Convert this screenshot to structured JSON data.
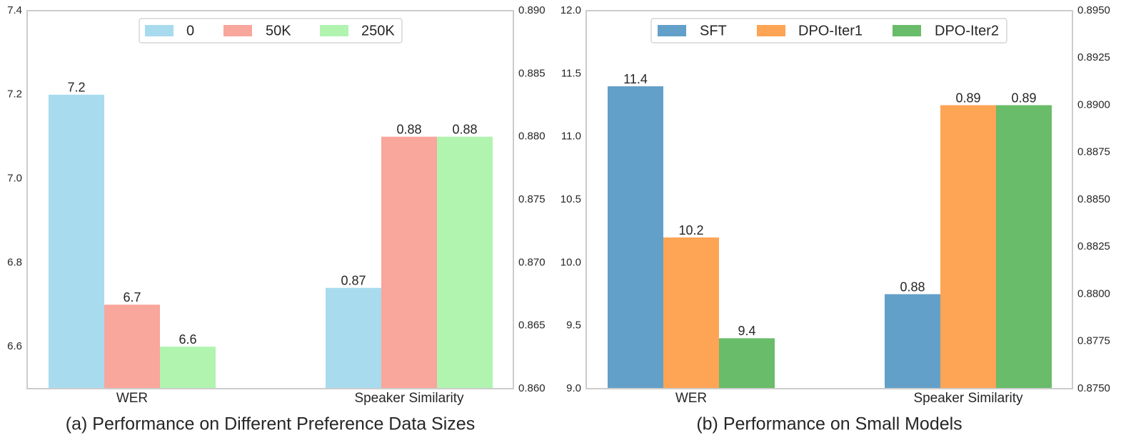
{
  "chart_data": [
    {
      "type": "bar",
      "title": "(a) Performance on Different Preference Data Sizes",
      "categories": [
        "WER",
        "Speaker Similarity"
      ],
      "series": [
        {
          "name": "0",
          "color": "#a8dbee",
          "values": [
            7.2,
            0.868
          ],
          "labels": [
            "7.2",
            "0.87"
          ]
        },
        {
          "name": "50K",
          "color": "#f9a69c",
          "values": [
            6.7,
            0.88
          ],
          "labels": [
            "6.7",
            "0.88"
          ]
        },
        {
          "name": "250K",
          "color": "#b0f4b0",
          "values": [
            6.6,
            0.88
          ],
          "labels": [
            "6.6",
            "0.88"
          ]
        }
      ],
      "left_axis": {
        "ylim": [
          6.5,
          7.4
        ],
        "ticks": [
          "6.6",
          "6.8",
          "7.0",
          "7.2",
          "7.4"
        ]
      },
      "right_axis": {
        "ylim": [
          0.86,
          0.89
        ],
        "ticks": [
          "0.860",
          "0.865",
          "0.870",
          "0.875",
          "0.880",
          "0.885",
          "0.890"
        ]
      },
      "legend": "top-center"
    },
    {
      "type": "bar",
      "title": "(b) Performance on Small Models",
      "categories": [
        "WER",
        "Speaker Similarity"
      ],
      "series": [
        {
          "name": "SFT",
          "color": "#63a0c9",
          "values": [
            11.4,
            0.88
          ],
          "labels": [
            "11.4",
            "0.88"
          ]
        },
        {
          "name": "DPO-Iter1",
          "color": "#fea455",
          "values": [
            10.2,
            0.89
          ],
          "labels": [
            "10.2",
            "0.89"
          ]
        },
        {
          "name": "DPO-Iter2",
          "color": "#69bc69",
          "values": [
            9.4,
            0.89
          ],
          "labels": [
            "9.4",
            "0.89"
          ]
        }
      ],
      "left_axis": {
        "ylim": [
          9.0,
          12.0
        ],
        "ticks": [
          "9.0",
          "9.5",
          "10.0",
          "10.5",
          "11.0",
          "11.5",
          "12.0"
        ]
      },
      "right_axis": {
        "ylim": [
          0.875,
          0.895
        ],
        "ticks": [
          "0.8750",
          "0.8775",
          "0.8800",
          "0.8825",
          "0.8850",
          "0.8875",
          "0.8900",
          "0.8925",
          "0.8950"
        ]
      },
      "legend": "top-center"
    }
  ]
}
